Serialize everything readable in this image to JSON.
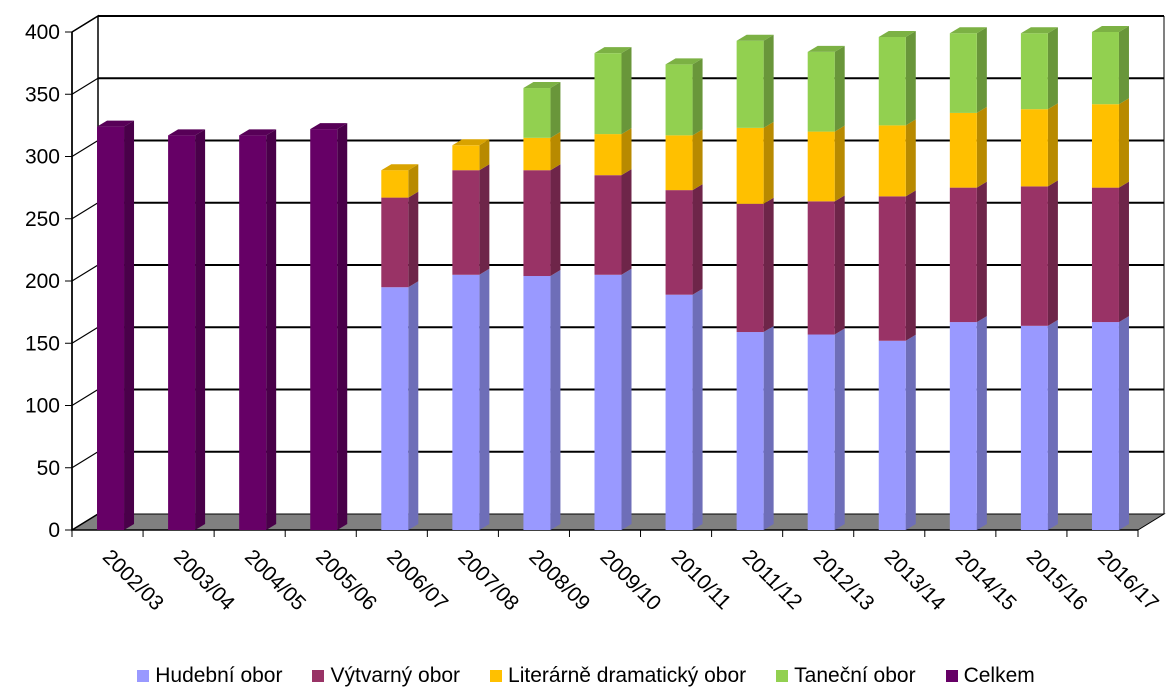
{
  "chart_data": {
    "type": "bar",
    "stacked": true,
    "three_d": true,
    "title": "",
    "xlabel": "",
    "ylabel": "",
    "ylim": [
      0,
      400
    ],
    "yticks": [
      0,
      50,
      100,
      150,
      200,
      250,
      300,
      350,
      400
    ],
    "grid": true,
    "legend_position": "bottom",
    "categories": [
      "2002/03",
      "2003/04",
      "2004/05",
      "2005/06",
      "2006/07",
      "2007/08",
      "2008/09",
      "2009/10",
      "2010/11",
      "2011/12",
      "2012/13",
      "2013/14",
      "2014/15",
      "2015/16",
      "2016/17"
    ],
    "series": [
      {
        "name": "Hudební obor",
        "color": "#9999FF",
        "values": [
          null,
          null,
          null,
          null,
          195,
          205,
          204,
          205,
          189,
          159,
          157,
          152,
          167,
          164,
          167
        ]
      },
      {
        "name": "Výtvarný obor",
        "color": "#993366",
        "values": [
          null,
          null,
          null,
          null,
          72,
          84,
          85,
          80,
          84,
          103,
          107,
          116,
          108,
          112,
          108
        ]
      },
      {
        "name": "Literárně dramatický obor",
        "color": "#FFC000",
        "values": [
          null,
          null,
          null,
          null,
          22,
          20,
          26,
          33,
          44,
          61,
          56,
          57,
          60,
          62,
          67
        ]
      },
      {
        "name": "Taneční obor",
        "color": "#92D050",
        "values": [
          null,
          null,
          null,
          null,
          null,
          null,
          40,
          65,
          57,
          70,
          64,
          71,
          64,
          61,
          58
        ]
      },
      {
        "name": "Celkem",
        "color": "#660066",
        "values": [
          324,
          317,
          317,
          322,
          null,
          null,
          null,
          null,
          null,
          null,
          null,
          null,
          null,
          null,
          null
        ]
      }
    ]
  }
}
